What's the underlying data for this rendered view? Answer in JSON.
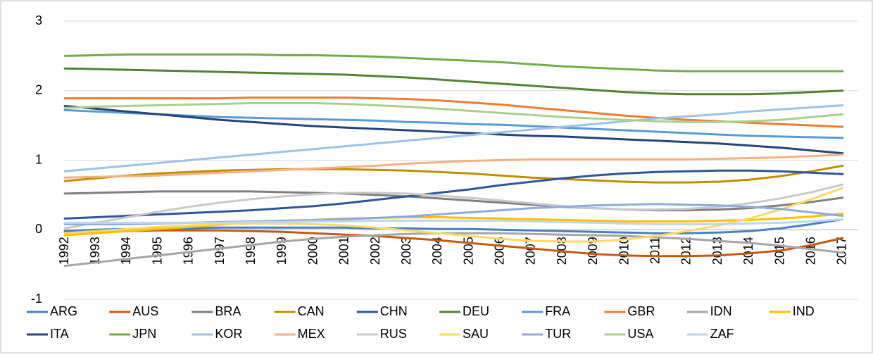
{
  "chart_data": {
    "type": "line",
    "categories": [
      "1992",
      "1993",
      "1994",
      "1995",
      "1996",
      "1997",
      "1998",
      "1999",
      "2000",
      "2001",
      "2002",
      "2003",
      "2004",
      "2005",
      "2006",
      "2007",
      "2008",
      "2009",
      "2010",
      "2011",
      "2012",
      "2013",
      "2014",
      "2015",
      "2016",
      "2017"
    ],
    "ylim": [
      -1,
      3
    ],
    "yticks": [
      -1,
      0,
      1,
      2,
      3
    ],
    "grid": true,
    "legend": "bottom",
    "series": [
      {
        "name": "ARG",
        "color": "#4a7fc1",
        "values": [
          -0.02,
          0.0,
          0.01,
          0.02,
          0.02,
          0.03,
          0.03,
          0.03,
          0.03,
          0.03,
          0.02,
          0.02,
          0.01,
          0.01,
          0.0,
          -0.01,
          -0.02,
          -0.03,
          -0.04,
          -0.05,
          -0.05,
          -0.04,
          -0.02,
          0.02,
          0.08,
          0.15
        ]
      },
      {
        "name": "AUS",
        "color": "#c55a11",
        "values": [
          -0.04,
          -0.03,
          -0.02,
          -0.01,
          -0.01,
          -0.01,
          -0.02,
          -0.03,
          -0.05,
          -0.07,
          -0.09,
          -0.12,
          -0.15,
          -0.19,
          -0.23,
          -0.27,
          -0.31,
          -0.35,
          -0.37,
          -0.38,
          -0.38,
          -0.37,
          -0.34,
          -0.3,
          -0.22,
          -0.12
        ]
      },
      {
        "name": "BRA",
        "color": "#7f7f7f",
        "values": [
          0.52,
          0.53,
          0.54,
          0.55,
          0.55,
          0.55,
          0.55,
          0.54,
          0.53,
          0.52,
          0.5,
          0.48,
          0.45,
          0.42,
          0.39,
          0.36,
          0.33,
          0.31,
          0.29,
          0.28,
          0.28,
          0.29,
          0.31,
          0.35,
          0.4,
          0.46
        ]
      },
      {
        "name": "CAN",
        "color": "#bf9000",
        "values": [
          0.7,
          0.74,
          0.78,
          0.81,
          0.83,
          0.85,
          0.86,
          0.87,
          0.87,
          0.87,
          0.86,
          0.85,
          0.83,
          0.81,
          0.78,
          0.75,
          0.73,
          0.71,
          0.69,
          0.68,
          0.68,
          0.69,
          0.72,
          0.77,
          0.84,
          0.92
        ]
      },
      {
        "name": "CHN",
        "color": "#2f5597",
        "values": [
          0.16,
          0.18,
          0.2,
          0.22,
          0.24,
          0.26,
          0.28,
          0.31,
          0.34,
          0.38,
          0.43,
          0.48,
          0.53,
          0.58,
          0.64,
          0.69,
          0.74,
          0.78,
          0.81,
          0.83,
          0.84,
          0.85,
          0.85,
          0.84,
          0.82,
          0.8
        ]
      },
      {
        "name": "DEU",
        "color": "#548235",
        "values": [
          2.32,
          2.31,
          2.3,
          2.29,
          2.28,
          2.27,
          2.26,
          2.25,
          2.24,
          2.23,
          2.21,
          2.19,
          2.16,
          2.13,
          2.1,
          2.07,
          2.04,
          2.01,
          1.98,
          1.96,
          1.95,
          1.95,
          1.95,
          1.96,
          1.98,
          2.0
        ]
      },
      {
        "name": "FRA",
        "color": "#5b9bd5",
        "values": [
          1.72,
          1.7,
          1.68,
          1.66,
          1.64,
          1.62,
          1.61,
          1.6,
          1.59,
          1.58,
          1.57,
          1.55,
          1.54,
          1.52,
          1.51,
          1.49,
          1.47,
          1.45,
          1.43,
          1.41,
          1.39,
          1.37,
          1.35,
          1.34,
          1.33,
          1.32
        ]
      },
      {
        "name": "GBR",
        "color": "#ed7d31",
        "values": [
          1.89,
          1.89,
          1.89,
          1.89,
          1.89,
          1.89,
          1.9,
          1.9,
          1.9,
          1.9,
          1.89,
          1.88,
          1.86,
          1.83,
          1.8,
          1.76,
          1.72,
          1.68,
          1.64,
          1.61,
          1.58,
          1.56,
          1.54,
          1.52,
          1.5,
          1.48
        ]
      },
      {
        "name": "IDN",
        "color": "#a5a5a5",
        "values": [
          -0.52,
          -0.47,
          -0.42,
          -0.37,
          -0.32,
          -0.27,
          -0.22,
          -0.17,
          -0.13,
          -0.1,
          -0.08,
          -0.06,
          -0.05,
          -0.05,
          -0.05,
          -0.06,
          -0.07,
          -0.08,
          -0.09,
          -0.11,
          -0.13,
          -0.16,
          -0.19,
          -0.23,
          -0.28,
          -0.33
        ]
      },
      {
        "name": "IND",
        "color": "#ffc000",
        "values": [
          -0.08,
          -0.05,
          -0.02,
          0.01,
          0.04,
          0.07,
          0.1,
          0.12,
          0.14,
          0.16,
          0.17,
          0.18,
          0.18,
          0.17,
          0.16,
          0.15,
          0.14,
          0.13,
          0.12,
          0.12,
          0.12,
          0.13,
          0.14,
          0.16,
          0.19,
          0.23
        ]
      },
      {
        "name": "ITA",
        "color": "#264478",
        "values": [
          1.78,
          1.74,
          1.7,
          1.66,
          1.62,
          1.58,
          1.55,
          1.52,
          1.49,
          1.47,
          1.45,
          1.43,
          1.41,
          1.39,
          1.37,
          1.35,
          1.34,
          1.32,
          1.3,
          1.28,
          1.26,
          1.24,
          1.21,
          1.18,
          1.14,
          1.1
        ]
      },
      {
        "name": "JPN",
        "color": "#70ad47",
        "values": [
          2.5,
          2.51,
          2.52,
          2.52,
          2.52,
          2.52,
          2.52,
          2.51,
          2.51,
          2.5,
          2.49,
          2.47,
          2.45,
          2.43,
          2.41,
          2.38,
          2.35,
          2.33,
          2.31,
          2.29,
          2.28,
          2.28,
          2.28,
          2.28,
          2.28,
          2.28
        ]
      },
      {
        "name": "KOR",
        "color": "#9dc3e6",
        "values": [
          0.84,
          0.88,
          0.92,
          0.96,
          1.0,
          1.04,
          1.08,
          1.12,
          1.16,
          1.2,
          1.24,
          1.28,
          1.32,
          1.36,
          1.4,
          1.44,
          1.48,
          1.52,
          1.56,
          1.6,
          1.63,
          1.66,
          1.7,
          1.73,
          1.76,
          1.79
        ]
      },
      {
        "name": "MEX",
        "color": "#f4b183",
        "values": [
          0.75,
          0.76,
          0.77,
          0.78,
          0.8,
          0.82,
          0.84,
          0.86,
          0.88,
          0.9,
          0.92,
          0.95,
          0.97,
          0.99,
          1.0,
          1.01,
          1.01,
          1.01,
          1.01,
          1.01,
          1.01,
          1.02,
          1.03,
          1.04,
          1.06,
          1.08
        ]
      },
      {
        "name": "RUS",
        "color": "#c9c9c9",
        "values": [
          0.02,
          0.1,
          0.18,
          0.26,
          0.33,
          0.39,
          0.44,
          0.48,
          0.51,
          0.53,
          0.53,
          0.52,
          0.49,
          0.46,
          0.42,
          0.38,
          0.34,
          0.31,
          0.29,
          0.29,
          0.3,
          0.33,
          0.38,
          0.45,
          0.54,
          0.65
        ]
      },
      {
        "name": "SAU",
        "color": "#ffd966",
        "values": [
          -0.05,
          -0.02,
          0.01,
          0.04,
          0.06,
          0.08,
          0.09,
          0.09,
          0.08,
          0.06,
          0.03,
          -0.01,
          -0.05,
          -0.09,
          -0.13,
          -0.16,
          -0.17,
          -0.17,
          -0.14,
          -0.09,
          -0.02,
          0.06,
          0.16,
          0.29,
          0.44,
          0.6
        ]
      },
      {
        "name": "TUR",
        "color": "#8faadc",
        "values": [
          0.08,
          0.08,
          0.08,
          0.09,
          0.1,
          0.11,
          0.12,
          0.13,
          0.14,
          0.15,
          0.17,
          0.19,
          0.22,
          0.25,
          0.28,
          0.31,
          0.33,
          0.35,
          0.36,
          0.37,
          0.36,
          0.35,
          0.33,
          0.3,
          0.25,
          0.2
        ]
      },
      {
        "name": "USA",
        "color": "#a9d18e",
        "values": [
          1.75,
          1.77,
          1.78,
          1.79,
          1.8,
          1.81,
          1.82,
          1.82,
          1.82,
          1.81,
          1.79,
          1.77,
          1.74,
          1.71,
          1.68,
          1.65,
          1.62,
          1.6,
          1.58,
          1.56,
          1.55,
          1.55,
          1.56,
          1.58,
          1.62,
          1.66
        ]
      },
      {
        "name": "ZAF",
        "color": "#bdd7ee",
        "values": [
          0.1,
          0.1,
          0.1,
          0.1,
          0.1,
          0.1,
          0.11,
          0.11,
          0.12,
          0.12,
          0.13,
          0.13,
          0.13,
          0.13,
          0.13,
          0.12,
          0.11,
          0.1,
          0.09,
          0.08,
          0.08,
          0.08,
          0.09,
          0.1,
          0.12,
          0.15
        ]
      }
    ]
  }
}
